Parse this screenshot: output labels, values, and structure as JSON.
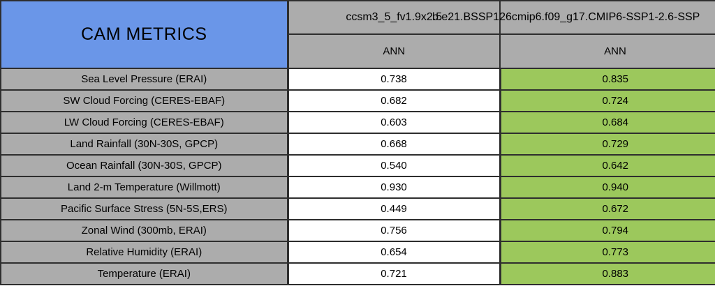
{
  "table": {
    "title": "CAM METRICS",
    "columns": [
      {
        "model": "ccsm3_5_fv1.9x2.5",
        "season": "ANN"
      },
      {
        "model": "b.e21.BSSP126cmip6.f09_g17.CMIP6-SSP1-2.6-SSP",
        "season": "ANN"
      }
    ],
    "rows": [
      {
        "label": "Sea Level Pressure (ERAI)",
        "values": [
          "0.738",
          "0.835"
        ]
      },
      {
        "label": "SW Cloud Forcing (CERES-EBAF)",
        "values": [
          "0.682",
          "0.724"
        ]
      },
      {
        "label": "LW Cloud Forcing (CERES-EBAF)",
        "values": [
          "0.603",
          "0.684"
        ]
      },
      {
        "label": "Land Rainfall (30N-30S, GPCP)",
        "values": [
          "0.668",
          "0.729"
        ]
      },
      {
        "label": "Ocean Rainfall (30N-30S, GPCP)",
        "values": [
          "0.540",
          "0.642"
        ]
      },
      {
        "label": "Land 2-m Temperature (Willmott)",
        "values": [
          "0.930",
          "0.940"
        ]
      },
      {
        "label": "Pacific Surface Stress (5N-5S,ERS)",
        "values": [
          "0.449",
          "0.672"
        ]
      },
      {
        "label": "Zonal Wind (300mb, ERAI)",
        "values": [
          "0.756",
          "0.794"
        ]
      },
      {
        "label": "Relative Humidity (ERAI)",
        "values": [
          "0.654",
          "0.773"
        ]
      },
      {
        "label": "Temperature (ERAI)",
        "values": [
          "0.721",
          "0.883"
        ]
      }
    ]
  },
  "colors": {
    "title_bg": "#6a96e8",
    "header_bg": "#acacac",
    "row_label_bg": "#acacac",
    "value_col1_bg": "#ffffff",
    "value_col2_highlight_bg": "#9cc85c",
    "grid": "#2e2e2e",
    "text": "#000000"
  },
  "chart_data": {
    "type": "table",
    "title": "CAM METRICS",
    "categories": [
      "Sea Level Pressure (ERAI)",
      "SW Cloud Forcing (CERES-EBAF)",
      "LW Cloud Forcing (CERES-EBAF)",
      "Land Rainfall (30N-30S, GPCP)",
      "Ocean Rainfall (30N-30S, GPCP)",
      "Land 2-m Temperature (Willmott)",
      "Pacific Surface Stress (5N-5S,ERS)",
      "Zonal Wind (300mb, ERAI)",
      "Relative Humidity (ERAI)",
      "Temperature (ERAI)"
    ],
    "series": [
      {
        "name": "ccsm3_5_fv1.9x2.5",
        "season": "ANN",
        "values": [
          0.738,
          0.682,
          0.603,
          0.668,
          0.54,
          0.93,
          0.449,
          0.756,
          0.654,
          0.721
        ]
      },
      {
        "name": "b.e21.BSSP126cmip6.f09_g17.CMIP6-SSP1-2.6-SSP",
        "season": "ANN",
        "values": [
          0.835,
          0.724,
          0.684,
          0.729,
          0.642,
          0.94,
          0.672,
          0.794,
          0.773,
          0.883
        ]
      }
    ],
    "layout": "metric rows x model columns; second model column highlighted green; higher value per row shaded"
  }
}
